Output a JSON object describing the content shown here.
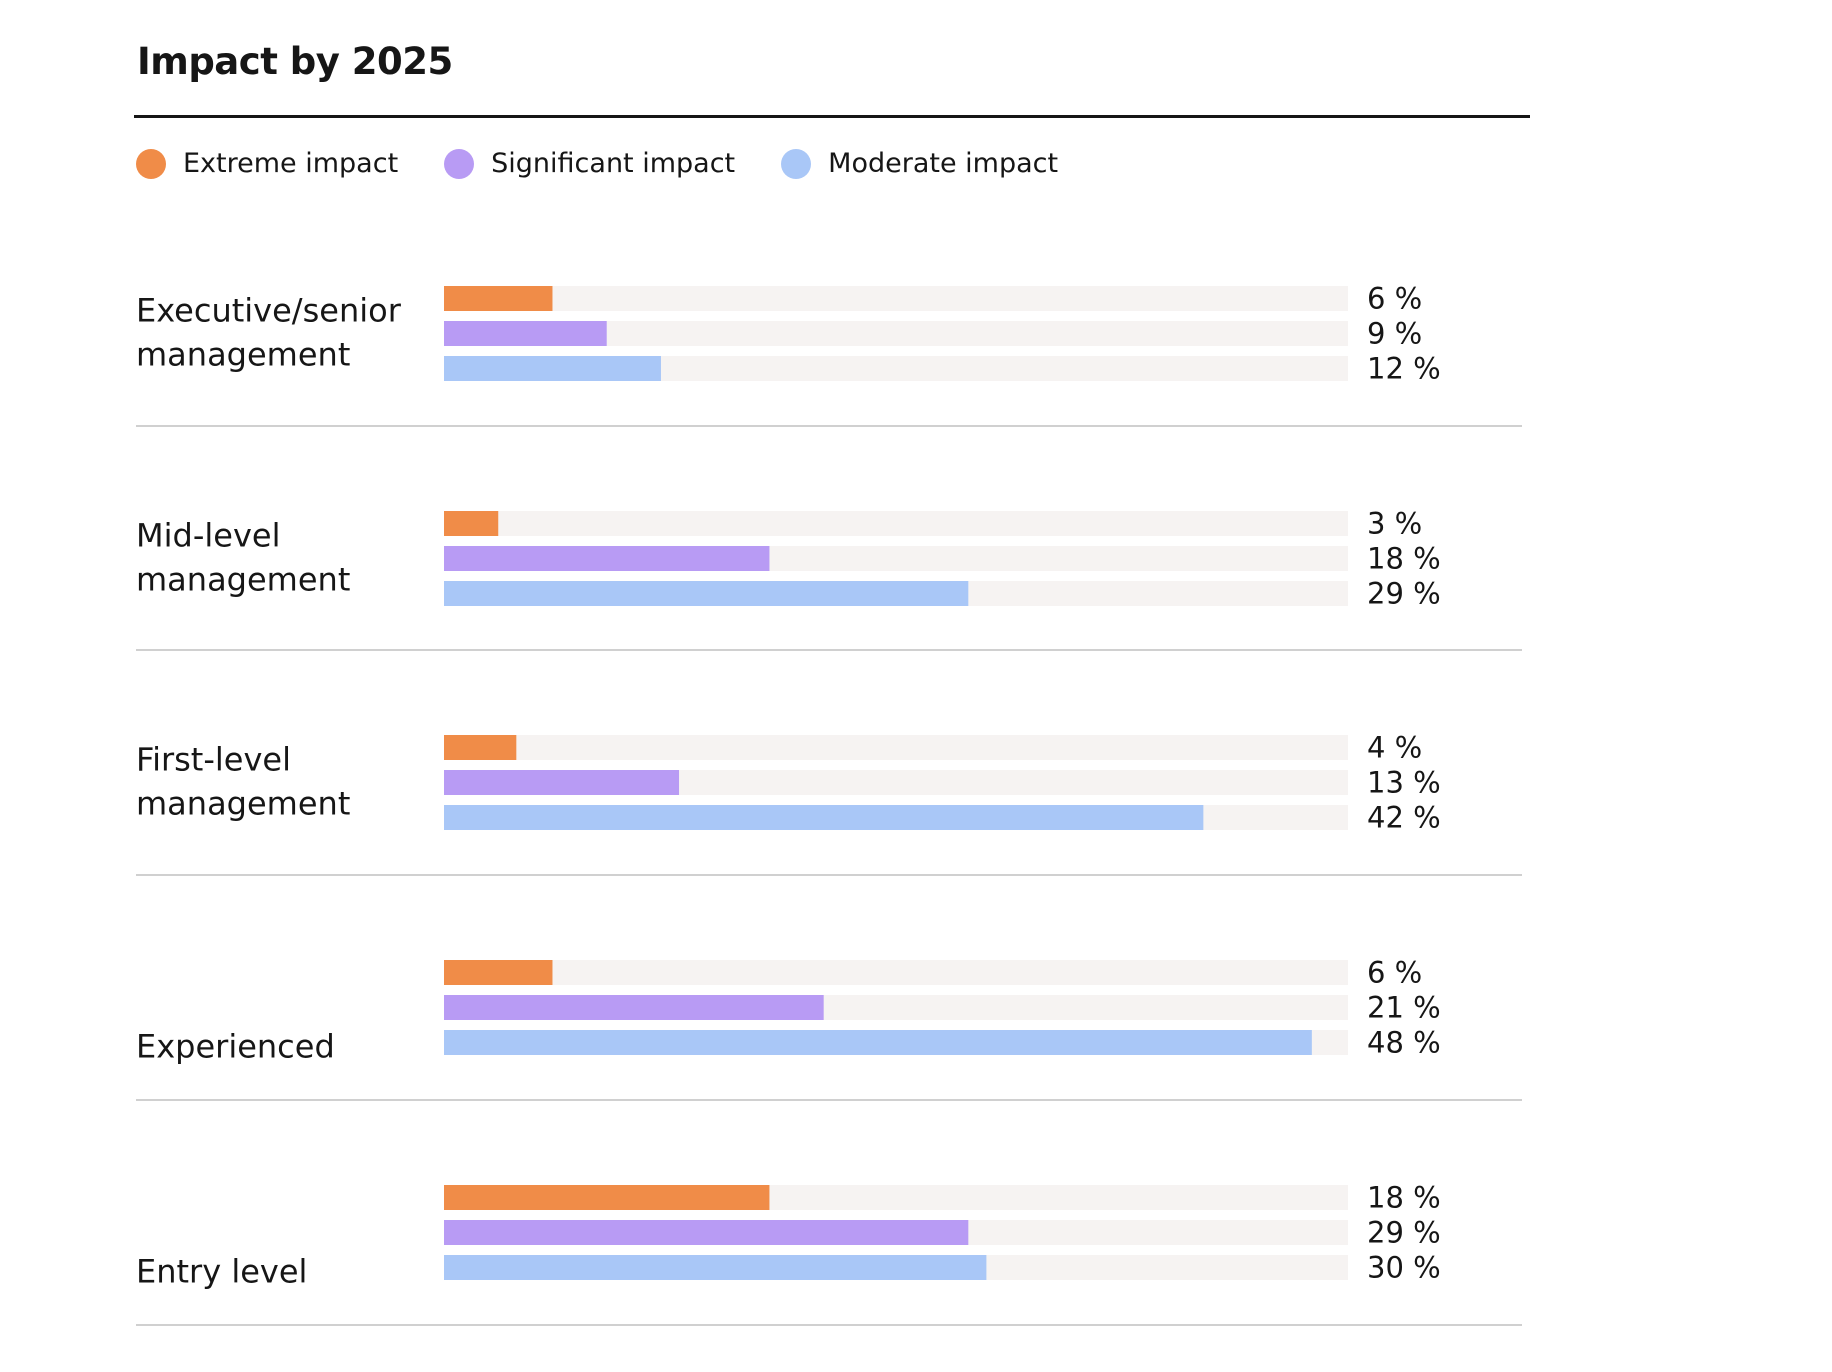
{
  "chart_data": {
    "type": "bar",
    "orientation": "horizontal",
    "title": "Impact by 2025",
    "legend_position": "top-left",
    "categories": [
      [
        "Executive/senior",
        "management"
      ],
      [
        "Mid-level",
        "management"
      ],
      [
        "First-level",
        "management"
      ],
      [
        "Experienced"
      ],
      [
        "Entry level"
      ]
    ],
    "series": [
      {
        "name": "Extreme impact",
        "color": "#f08c48",
        "values": [
          6,
          3,
          4,
          6,
          18
        ]
      },
      {
        "name": "Significant impact",
        "color": "#b89bf4",
        "values": [
          9,
          18,
          13,
          21,
          29
        ]
      },
      {
        "name": "Moderate impact",
        "color": "#a9c7f7",
        "values": [
          12,
          29,
          42,
          48,
          30
        ]
      }
    ],
    "value_suffix": " %",
    "xlim": [
      0,
      50
    ],
    "track_color": "#f6f3f2",
    "grid": false
  }
}
